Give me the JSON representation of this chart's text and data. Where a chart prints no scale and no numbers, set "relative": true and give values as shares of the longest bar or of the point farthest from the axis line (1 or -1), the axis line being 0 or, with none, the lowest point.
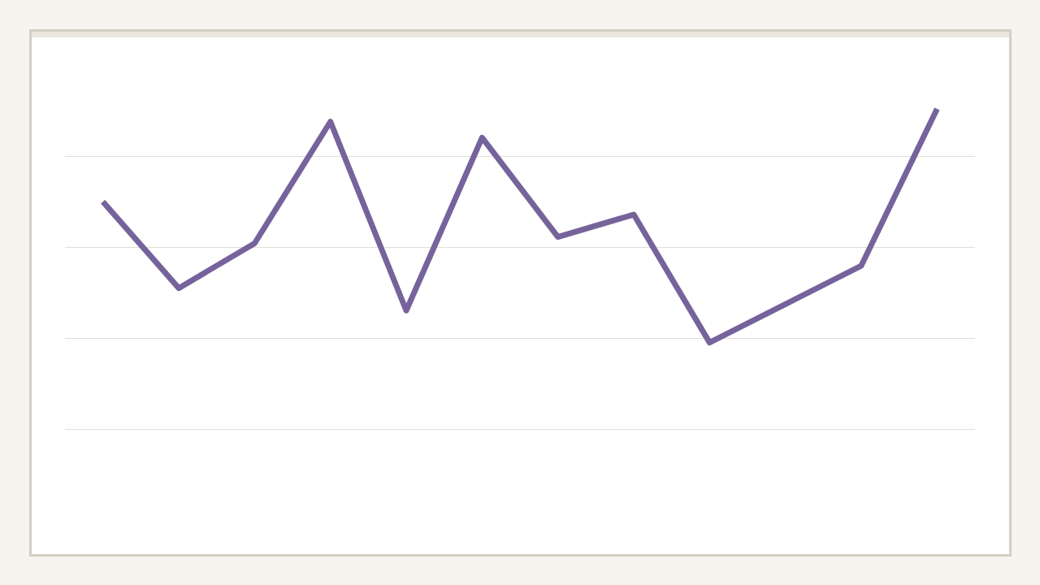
{
  "chart_data": {
    "type": "line",
    "relative": true,
    "categories": [
      null,
      null,
      null,
      null,
      null,
      null,
      null,
      null,
      null,
      null,
      null,
      null
    ],
    "series": [
      {
        "color": "#76639b",
        "values": [
          0.71,
          0.44,
          0.58,
          0.96,
          0.37,
          0.91,
          0.6,
          0.67,
          0.27,
          0.39,
          0.51,
          1
        ]
      }
    ],
    "grid": "y",
    "line_style": "solid"
  }
}
